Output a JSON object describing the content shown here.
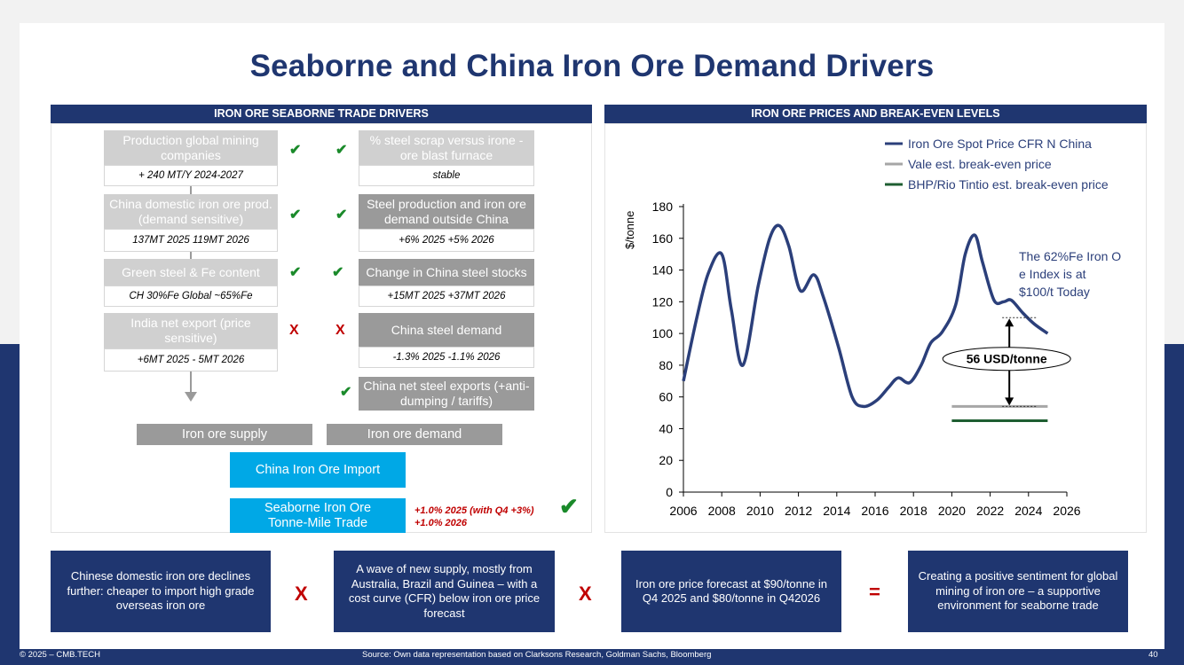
{
  "title": "Seaborne and China Iron Ore Demand Drivers",
  "left_panel": {
    "header": "IRON ORE SEABORNE TRADE DRIVERS",
    "supply_items": [
      {
        "label": "Production global mining companies",
        "value": "+ 240 MT/Y 2024-2027",
        "mark": "✔"
      },
      {
        "label": "China domestic iron ore prod. (demand sensitive)",
        "value": "137MT 2025  119MT 2026",
        "mark": "✔"
      },
      {
        "label": "Green steel & Fe content",
        "value": "CH 30%Fe Global ~65%Fe",
        "mark": "✔"
      },
      {
        "label": "India net export (price sensitive)",
        "value": "+6MT 2025 - 5MT 2026",
        "mark": "X"
      }
    ],
    "demand_items": [
      {
        "label": "% steel scrap versus irone -ore blast furnace",
        "value": "stable",
        "mark": "✔"
      },
      {
        "label": "Steel production and iron ore demand outside China",
        "value": "+6% 2025  +5% 2026",
        "mark": "✔"
      },
      {
        "label": "Change in China steel stocks",
        "value": "+15MT 2025  +37MT 2026",
        "mark": "✔"
      },
      {
        "label": "China steel demand",
        "value": "-1.3% 2025  -1.1% 2026",
        "mark": "X"
      },
      {
        "label": "China net steel exports (+anti-dumping / tariffs)",
        "mark": "✔"
      }
    ],
    "supply_bar": "Iron ore supply",
    "demand_bar": "Iron ore demand",
    "china_import": "China Iron Ore Import",
    "tonne_mile": "Seaborne Iron Ore Tonne-Mile Trade",
    "tonne_mile_note_1": "+1.0% 2025 (with Q4 +3%)",
    "tonne_mile_note_2": "+1.0% 2026",
    "big_check": "✔"
  },
  "right_panel": {
    "header": "IRON ORE PRICES AND BREAK-EVEN LEVELS"
  },
  "chart_data": {
    "type": "line",
    "title": "",
    "xlabel": "",
    "ylabel": "$/tonne",
    "xlim": [
      2006,
      2026
    ],
    "ylim": [
      0,
      180
    ],
    "xticks": [
      2006,
      2008,
      2010,
      2012,
      2014,
      2016,
      2018,
      2020,
      2022,
      2024,
      2026
    ],
    "yticks": [
      0,
      20,
      40,
      60,
      80,
      100,
      120,
      140,
      160,
      180
    ],
    "series": [
      {
        "name": "Iron Ore Spot Price CFR N China",
        "color": "#2b3f7a",
        "x": [
          2006,
          2006.7,
          2007.3,
          2008.0,
          2008.5,
          2009.1,
          2009.9,
          2010.5,
          2011.0,
          2011.5,
          2012.1,
          2012.8,
          2013.3,
          2014.1,
          2014.8,
          2015.4,
          2016.1,
          2016.7,
          2017.2,
          2017.8,
          2018.4,
          2018.9,
          2019.5,
          2020.2,
          2020.7,
          2021.2,
          2021.6,
          2022.2,
          2022.7,
          2023.1,
          2023.7,
          2024.3,
          2025.0
        ],
        "values": [
          70,
          110,
          138,
          150,
          115,
          80,
          130,
          160,
          168,
          155,
          127,
          137,
          123,
          91,
          60,
          54,
          58,
          66,
          72,
          69,
          80,
          94,
          101,
          118,
          150,
          162,
          145,
          121,
          120,
          121,
          113,
          106,
          100
        ]
      },
      {
        "name": "Vale est. break-even price",
        "color": "#a6a6a6",
        "x": [
          2020,
          2025
        ],
        "values": [
          54,
          54
        ]
      },
      {
        "name": "BHP/Rio Tintio est. break-even price",
        "color": "#1e5e31",
        "x": [
          2020,
          2025
        ],
        "values": [
          45,
          45
        ]
      }
    ],
    "legend": [
      "Iron Ore Spot Price CFR N China",
      "Vale est. break-even price",
      "BHP/Rio Tintio est. break-even price"
    ],
    "annotation_text": "The 62%Fe Iron Ore Index is at ~$100/t Today",
    "gap_label": "56 USD/tonne",
    "gap_from": 54,
    "gap_to": 110,
    "gap_x": 2023
  },
  "bottom": {
    "box1": "Chinese domestic iron ore declines further: cheaper to import high grade overseas iron ore",
    "op1": "X",
    "box2": "A wave of new supply, mostly from Australia, Brazil and Guinea – with a cost curve (CFR) below iron ore price forecast",
    "op2": "X",
    "box3": "Iron ore price forecast at $90/tonne in Q4 2025 and $80/tonne in Q42026",
    "op3": "=",
    "box4": "Creating a positive sentiment for global mining of iron ore – a supportive environment for seaborne trade"
  },
  "footer": {
    "copyright": "© 2025 – CMB.TECH",
    "source": "Source:  Own data representation based on Clarksons Research, Goldman Sachs, Bloomberg",
    "page": "40"
  },
  "colors": {
    "navy": "#1f3670",
    "accent_blue": "#00a8e6",
    "check_green": "#1a8a2a",
    "cross_red": "#c00000"
  }
}
